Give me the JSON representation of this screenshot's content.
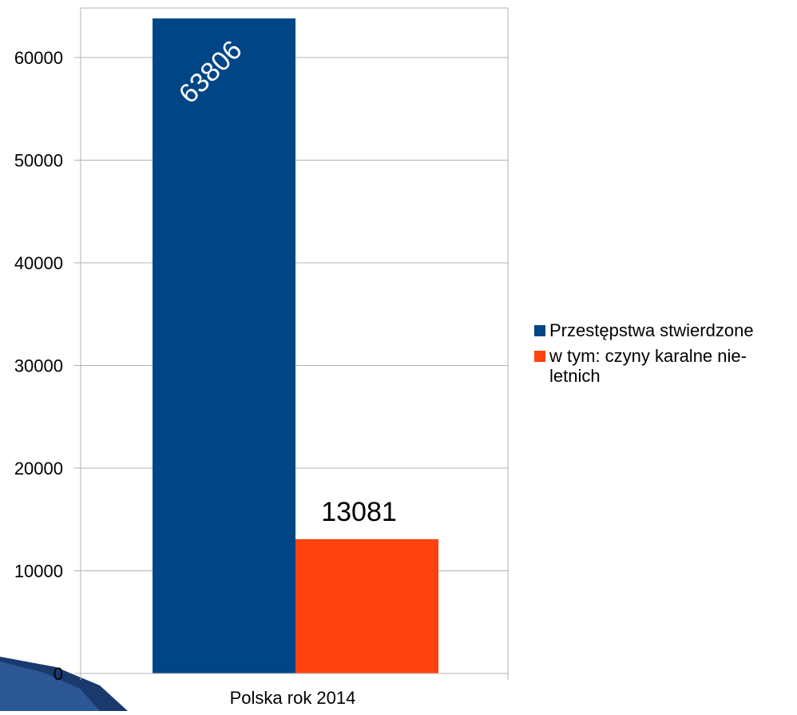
{
  "chart_data": {
    "type": "bar",
    "categories": [
      "Polska rok 2014"
    ],
    "series": [
      {
        "name": "Przestępstwa stwierdzone",
        "values": [
          63806
        ],
        "color": "#004586"
      },
      {
        "name": "w tym: czyny karalne nie-letnich",
        "values": [
          13081
        ],
        "color": "#ff420e"
      }
    ],
    "data_labels": [
      "63806",
      "13081"
    ],
    "ylim": [
      0,
      65000
    ],
    "yticks": [
      0,
      10000,
      20000,
      30000,
      40000,
      50000,
      60000
    ],
    "ytick_labels": [
      "0",
      "10000",
      "20000",
      "30000",
      "40000",
      "50000",
      "60000"
    ],
    "grid": true,
    "legend_position": "right",
    "title": "",
    "xlabel": "",
    "ylabel": ""
  }
}
